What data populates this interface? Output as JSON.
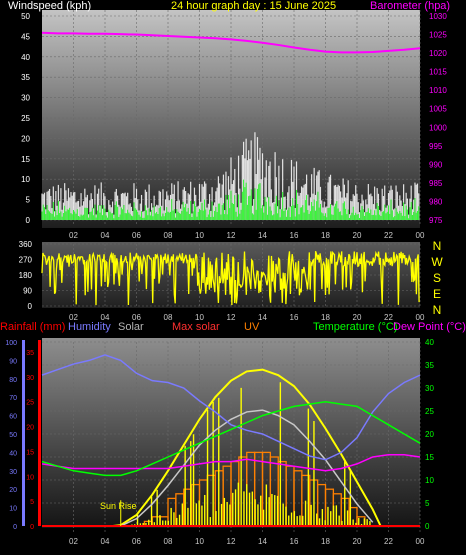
{
  "colors": {
    "wind_avg": "#00ff00",
    "wind_gust": "#ffffff",
    "barometer": "#ff00ff",
    "winddir": "#ffff00",
    "rain": "#ff0000",
    "humidity": "#7a7aff",
    "solar": "#c8c8c8",
    "max_solar": "#ffff00",
    "uv": "#ff8000",
    "temperature": "#00ff00",
    "dewpoint": "#ff00ff",
    "rain_axis": "#ff0000",
    "humidity_axis": "#7a7aff"
  },
  "chart_data": [
    {
      "type": "line",
      "title": "24 hour graph day : 15 June 2025",
      "ylabel": "Windspeed (kph)",
      "ylabel_right": "Barometer (hpa)",
      "x_ticks": [
        "02",
        "04",
        "06",
        "08",
        "10",
        "12",
        "14",
        "16",
        "18",
        "20",
        "22",
        "00"
      ],
      "ylim": [
        0,
        50
      ],
      "y_ticks": [
        "0",
        "5",
        "10",
        "15",
        "20",
        "25",
        "30",
        "35",
        "40",
        "45",
        "50"
      ],
      "y2lim": [
        975,
        1030
      ],
      "y2_ticks": [
        "975",
        "980",
        "985",
        "990",
        "995",
        "1000",
        "1005",
        "1010",
        "1015",
        "1020",
        "1025",
        "1030"
      ],
      "grid": true,
      "series": [
        {
          "name": "Barometer",
          "axis": "right",
          "x": [
            0,
            1,
            2,
            3,
            4,
            5,
            6,
            7,
            8,
            9,
            10,
            11,
            12,
            13,
            14,
            15,
            16,
            17,
            18,
            19,
            20,
            21,
            22,
            23,
            24
          ],
          "values": [
            1025.5,
            1025.3,
            1025.3,
            1025.2,
            1025.2,
            1025.1,
            1025.0,
            1024.8,
            1024.6,
            1024.4,
            1024.2,
            1024.0,
            1023.7,
            1023.3,
            1022.8,
            1022.2,
            1021.5,
            1020.9,
            1020.4,
            1020.2,
            1020.2,
            1020.3,
            1020.6,
            1020.9,
            1021.3
          ]
        }
      ]
    },
    {
      "type": "scatter",
      "x_ticks": [
        "02",
        "04",
        "06",
        "08",
        "10",
        "12",
        "14",
        "16",
        "18",
        "20",
        "22",
        "00"
      ],
      "ylim": [
        0,
        360
      ],
      "y_ticks": [
        "0",
        "90",
        "180",
        "270",
        "360"
      ],
      "compass_labels": [
        "N",
        "W",
        "S",
        "E",
        "N"
      ],
      "grid": true
    },
    {
      "type": "line",
      "legend": [
        "Rainfall (mm)",
        "Humidity",
        "Solar",
        "Max solar",
        "UV",
        "Temperature (°C)",
        "Dew Point (°C)"
      ],
      "x_ticks": [
        "02",
        "04",
        "06",
        "08",
        "10",
        "12",
        "14",
        "16",
        "18",
        "20",
        "22",
        "00"
      ],
      "rain_ticks": [
        "0",
        "5",
        "10",
        "15",
        "20",
        "25",
        "30",
        "35"
      ],
      "humidity_ticks": [
        "0",
        "10",
        "20",
        "30",
        "40",
        "50",
        "60",
        "70",
        "80",
        "90",
        "100"
      ],
      "temp_ticks": [
        "0",
        "5",
        "10",
        "15",
        "20",
        "25",
        "30",
        "35",
        "40"
      ],
      "temp_lim": [
        0,
        40
      ],
      "annotation": "Sun Rise",
      "grid": true,
      "series": [
        {
          "name": "Humidity",
          "x": [
            0,
            1,
            2,
            3,
            4,
            5,
            6,
            7,
            8,
            9,
            10,
            11,
            12,
            13,
            14,
            15,
            16,
            17,
            18,
            19,
            20,
            21,
            22,
            23,
            24
          ],
          "values": [
            82,
            85,
            88,
            90,
            93,
            90,
            83,
            79,
            78,
            75,
            68,
            62,
            55,
            52,
            50,
            46,
            42,
            38,
            36,
            40,
            48,
            62,
            72,
            78,
            82
          ]
        },
        {
          "name": "Temperature (°C)",
          "x": [
            0,
            1,
            2,
            3,
            4,
            5,
            6,
            7,
            8,
            9,
            10,
            11,
            12,
            13,
            14,
            15,
            16,
            17,
            18,
            19,
            20,
            21,
            22,
            23,
            24
          ],
          "values": [
            14,
            13,
            12,
            11.5,
            11,
            11,
            12,
            13.5,
            15,
            16.5,
            18,
            19.5,
            21,
            22.5,
            24,
            25,
            26,
            26.5,
            27,
            26.5,
            26,
            24,
            22,
            20,
            18
          ]
        },
        {
          "name": "Dew Point (°C)",
          "x": [
            0,
            1,
            2,
            3,
            4,
            5,
            6,
            7,
            8,
            9,
            10,
            11,
            12,
            13,
            14,
            15,
            16,
            17,
            18,
            19,
            20,
            21,
            22,
            23,
            24
          ],
          "values": [
            13.5,
            13,
            12.5,
            12.5,
            12.5,
            12.5,
            12.5,
            12.5,
            12.5,
            13,
            13.5,
            14,
            14,
            14.5,
            14,
            13.5,
            13,
            12.5,
            12,
            12.5,
            13.5,
            15,
            15.5,
            15.5,
            15
          ]
        },
        {
          "name": "Max solar",
          "x": [
            4.5,
            5,
            6,
            7,
            8,
            9,
            10,
            11,
            12,
            13,
            14,
            15,
            16,
            17,
            18,
            19,
            20,
            21,
            21.5
          ],
          "values": [
            0,
            0.5,
            6,
            17,
            30,
            44,
            58,
            70,
            79,
            84,
            85,
            82,
            76,
            66,
            53,
            39,
            24,
            9,
            0
          ]
        },
        {
          "name": "Solar",
          "x": [
            5,
            6,
            7,
            8,
            9,
            10,
            11,
            12,
            13,
            14,
            15,
            16,
            17,
            18,
            19,
            20,
            21
          ],
          "values": [
            0,
            4,
            12,
            22,
            33,
            44,
            52,
            58,
            62,
            63,
            60,
            55,
            46,
            36,
            24,
            12,
            2
          ]
        },
        {
          "name": "UV",
          "x": [
            6,
            7,
            7.5,
            8,
            9,
            10,
            11,
            12,
            13,
            14,
            15,
            16,
            17,
            18,
            19,
            20,
            20.5
          ],
          "values": [
            0,
            1,
            1,
            3,
            4,
            5,
            6,
            7,
            8,
            8,
            7,
            6,
            5,
            4,
            3,
            1,
            0
          ]
        }
      ]
    }
  ]
}
